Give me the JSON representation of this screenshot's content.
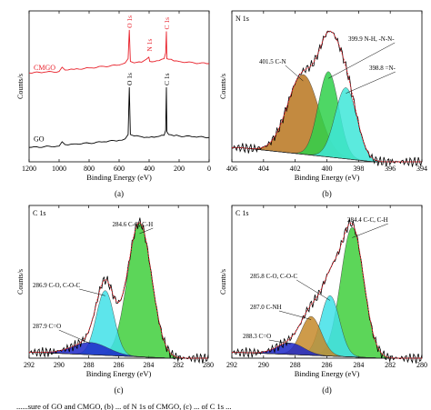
{
  "caption": "......sure of GO and CMGO, (b) ... of N 1s of CMGO, (c) ... of C 1s ...",
  "chart_data": [
    {
      "panel": "(a)",
      "type": "line",
      "xlabel": "Binding Energy (eV)",
      "ylabel": "Counts/s",
      "xlim": [
        1200,
        0
      ],
      "xticks": [
        1200,
        1000,
        800,
        600,
        400,
        200,
        0
      ],
      "y_ticks_shown": false,
      "series": [
        {
          "name": "CMGO",
          "color": "#e8202a",
          "x": [
            1200,
            1100,
            1000,
            980,
            960,
            900,
            800,
            700,
            600,
            560,
            540,
            532,
            525,
            500,
            450,
            402,
            399,
            396,
            350,
            300,
            290,
            285,
            282,
            270,
            200,
            100,
            0
          ],
          "y": [
            0.62,
            0.625,
            0.63,
            0.66,
            0.64,
            0.645,
            0.655,
            0.665,
            0.675,
            0.69,
            0.72,
            0.92,
            0.7,
            0.69,
            0.695,
            0.73,
            0.715,
            0.7,
            0.705,
            0.72,
            0.76,
            0.91,
            0.72,
            0.715,
            0.7,
            0.69,
            0.685
          ]
        },
        {
          "name": "GO",
          "color": "#000000",
          "x": [
            1200,
            1100,
            1000,
            980,
            960,
            900,
            800,
            700,
            600,
            560,
            540,
            532,
            525,
            500,
            450,
            400,
            350,
            300,
            290,
            285,
            282,
            270,
            200,
            100,
            0
          ],
          "y": [
            0.1,
            0.105,
            0.11,
            0.14,
            0.12,
            0.125,
            0.13,
            0.14,
            0.15,
            0.16,
            0.19,
            0.52,
            0.19,
            0.18,
            0.175,
            0.17,
            0.175,
            0.185,
            0.22,
            0.52,
            0.21,
            0.19,
            0.18,
            0.175,
            0.17
          ]
        }
      ],
      "annotations": [
        {
          "text": "O 1s",
          "series": "CMGO",
          "x": 532
        },
        {
          "text": "N 1s",
          "series": "CMGO",
          "x": 400
        },
        {
          "text": "C 1s",
          "series": "CMGO",
          "x": 285
        },
        {
          "text": "O 1s",
          "series": "GO",
          "x": 532
        },
        {
          "text": "C 1s",
          "series": "GO",
          "x": 285
        }
      ],
      "legend_labels": [
        {
          "text": "CMGO",
          "color": "#e8202a"
        },
        {
          "text": "GO",
          "color": "#000000"
        }
      ]
    },
    {
      "panel": "(b)",
      "type": "area",
      "title": "N 1s",
      "xlabel": "Binding Energy (eV)",
      "ylabel": "Counts/s",
      "xlim": [
        406,
        394
      ],
      "ylim": [
        0,
        1.06
      ],
      "xticks": [
        406,
        404,
        402,
        400,
        398,
        396,
        394
      ],
      "baseline": {
        "x": [
          405.5,
          397.0
        ],
        "y": [
          0.1,
          0.0
        ]
      },
      "components": [
        {
          "label": "401.5 C-N",
          "center": 401.5,
          "height": 0.56,
          "width": 1.15,
          "color": "#b8761e"
        },
        {
          "label": "399.9 N-H, -N-N-",
          "center": 399.9,
          "height": 0.6,
          "width": 0.75,
          "color": "#2fd04a"
        },
        {
          "label": "398.8 =N-",
          "center": 398.8,
          "height": 0.5,
          "width": 0.8,
          "color": "#3ee6d8"
        }
      ],
      "envelope_color": "#e8202a",
      "raw_color": "#000000"
    },
    {
      "panel": "(c)",
      "type": "area",
      "title": "C 1s",
      "xlabel": "Binding Energy (eV)",
      "ylabel": "Counts/s",
      "xlim": [
        292,
        280
      ],
      "ylim": [
        0,
        1.06
      ],
      "xticks": [
        292,
        290,
        288,
        286,
        284,
        282,
        280
      ],
      "baseline": {
        "x": [
          291.5,
          282.5
        ],
        "y": [
          0.04,
          0.0
        ]
      },
      "components": [
        {
          "label": "284.6 C-C, C-H",
          "center": 284.6,
          "height": 0.93,
          "width": 0.95,
          "color": "#3fcf3c"
        },
        {
          "label": "286.9 C-O, C-O-C",
          "center": 286.9,
          "height": 0.45,
          "width": 0.7,
          "color": "#41e0e8"
        },
        {
          "label": "287.9 C=O",
          "center": 287.9,
          "height": 0.085,
          "width": 1.4,
          "color": "#1c27c8"
        }
      ],
      "envelope_color": "#e8202a",
      "raw_color": "#000000"
    },
    {
      "panel": "(d)",
      "type": "area",
      "title": "C 1s",
      "xlabel": "Binding Energy (eV)",
      "ylabel": "Counts/s",
      "xlim": [
        292,
        280
      ],
      "ylim": [
        0,
        1.06
      ],
      "xticks": [
        292,
        290,
        288,
        286,
        284,
        282,
        280
      ],
      "baseline": {
        "x": [
          291.5,
          282.5
        ],
        "y": [
          0.04,
          0.0
        ]
      },
      "components": [
        {
          "label": "284.4 C-C, C-H",
          "center": 284.4,
          "height": 0.9,
          "width": 0.85,
          "color": "#3fcf3c"
        },
        {
          "label": "285.8 C-O, C-O-C",
          "center": 285.8,
          "height": 0.42,
          "width": 0.7,
          "color": "#41e0e8"
        },
        {
          "label": "287.0 C-NH",
          "center": 287.0,
          "height": 0.27,
          "width": 0.75,
          "color": "#c68a2a"
        },
        {
          "label": "288.3 C=O",
          "center": 288.3,
          "height": 0.08,
          "width": 1.0,
          "color": "#1c27c8"
        }
      ],
      "envelope_color": "#e8202a",
      "raw_color": "#000000"
    }
  ]
}
